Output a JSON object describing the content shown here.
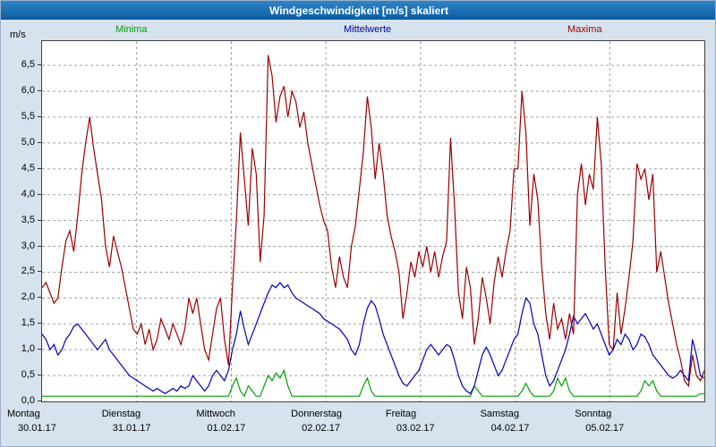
{
  "window": {
    "title": "Windgeschwindigkeit [m/s] skaliert"
  },
  "colors": {
    "background": "#d6e2ee",
    "titlebar_top": "#2f85c8",
    "titlebar_bottom": "#0d5ba0",
    "plot_border": "#404040",
    "grid": "#a0a0a0",
    "minima": "#00a000",
    "mittelwerte": "#0000bb",
    "maxima": "#990000"
  },
  "chart_data": {
    "type": "line",
    "title": "Windgeschwindigkeit [m/s] skaliert",
    "xlabel": "",
    "ylabel": "m/s",
    "ylim": [
      0,
      6.5
    ],
    "ymax_render": 6.97,
    "grid": "dashed",
    "legend_position": "top",
    "yticks": [
      0.0,
      0.5,
      1.0,
      1.5,
      2.0,
      2.5,
      3.0,
      3.5,
      4.0,
      4.5,
      5.0,
      5.5,
      6.0,
      6.5
    ],
    "points_per_day": 24,
    "x_days": [
      {
        "day": "Montag",
        "date": "30.01.17"
      },
      {
        "day": "Dienstag",
        "date": "31.01.17"
      },
      {
        "day": "Mittwoch",
        "date": "01.02.17"
      },
      {
        "day": "Donnerstag",
        "date": "02.02.17"
      },
      {
        "day": "Freitag",
        "date": "03.02.17"
      },
      {
        "day": "Samstag",
        "date": "04.02.17"
      },
      {
        "day": "Sonntag",
        "date": "05.02.17"
      }
    ],
    "series": [
      {
        "name": "Minima",
        "color": "#00a000",
        "values": [
          0.1,
          0.1,
          0.1,
          0.1,
          0.1,
          0.1,
          0.1,
          0.1,
          0.1,
          0.1,
          0.1,
          0.1,
          0.1,
          0.1,
          0.1,
          0.1,
          0.1,
          0.1,
          0.1,
          0.1,
          0.1,
          0.1,
          0.1,
          0.1,
          0.1,
          0.1,
          0.1,
          0.1,
          0.1,
          0.1,
          0.1,
          0.1,
          0.1,
          0.1,
          0.1,
          0.1,
          0.1,
          0.1,
          0.1,
          0.1,
          0.1,
          0.1,
          0.1,
          0.1,
          0.1,
          0.1,
          0.1,
          0.1,
          0.3,
          0.45,
          0.2,
          0.1,
          0.3,
          0.2,
          0.1,
          0.1,
          0.3,
          0.5,
          0.4,
          0.55,
          0.45,
          0.6,
          0.3,
          0.1,
          0.1,
          0.1,
          0.1,
          0.1,
          0.1,
          0.1,
          0.1,
          0.1,
          0.1,
          0.1,
          0.1,
          0.1,
          0.1,
          0.1,
          0.1,
          0.1,
          0.1,
          0.3,
          0.45,
          0.2,
          0.1,
          0.1,
          0.1,
          0.1,
          0.1,
          0.1,
          0.1,
          0.1,
          0.1,
          0.1,
          0.1,
          0.1,
          0.1,
          0.1,
          0.1,
          0.1,
          0.1,
          0.1,
          0.1,
          0.1,
          0.1,
          0.1,
          0.1,
          0.1,
          0.1,
          0.3,
          0.2,
          0.1,
          0.1,
          0.1,
          0.1,
          0.1,
          0.1,
          0.1,
          0.1,
          0.1,
          0.1,
          0.2,
          0.35,
          0.2,
          0.1,
          0.1,
          0.1,
          0.1,
          0.1,
          0.2,
          0.45,
          0.3,
          0.45,
          0.2,
          0.1,
          0.1,
          0.1,
          0.1,
          0.1,
          0.1,
          0.1,
          0.1,
          0.1,
          0.1,
          0.1,
          0.1,
          0.1,
          0.1,
          0.1,
          0.1,
          0.1,
          0.2,
          0.4,
          0.3,
          0.4,
          0.2,
          0.1,
          0.1,
          0.1,
          0.1,
          0.1,
          0.1,
          0.1,
          0.1,
          0.1,
          0.1,
          0.15,
          0.15
        ]
      },
      {
        "name": "Mittelwerte",
        "color": "#0000bb",
        "values": [
          1.3,
          1.2,
          1.0,
          1.1,
          0.9,
          1.0,
          1.2,
          1.3,
          1.45,
          1.5,
          1.4,
          1.3,
          1.2,
          1.1,
          1.0,
          1.1,
          1.2,
          1.0,
          0.9,
          0.8,
          0.7,
          0.6,
          0.5,
          0.45,
          0.4,
          0.35,
          0.3,
          0.25,
          0.2,
          0.25,
          0.2,
          0.15,
          0.2,
          0.25,
          0.2,
          0.3,
          0.25,
          0.3,
          0.5,
          0.4,
          0.3,
          0.2,
          0.3,
          0.5,
          0.6,
          0.5,
          0.4,
          0.6,
          1.0,
          1.3,
          1.75,
          1.4,
          1.1,
          1.3,
          1.5,
          1.7,
          1.9,
          2.1,
          2.25,
          2.2,
          2.3,
          2.2,
          2.25,
          2.1,
          2.0,
          1.95,
          1.9,
          1.85,
          1.8,
          1.75,
          1.7,
          1.6,
          1.55,
          1.5,
          1.45,
          1.4,
          1.3,
          1.2,
          1.0,
          0.9,
          1.1,
          1.5,
          1.8,
          1.95,
          1.85,
          1.6,
          1.3,
          1.1,
          0.9,
          0.7,
          0.5,
          0.35,
          0.3,
          0.4,
          0.5,
          0.6,
          0.8,
          1.0,
          1.1,
          1.0,
          0.9,
          1.0,
          1.1,
          1.05,
          0.8,
          0.5,
          0.3,
          0.2,
          0.15,
          0.3,
          0.6,
          0.9,
          1.05,
          0.9,
          0.7,
          0.5,
          0.6,
          0.8,
          1.0,
          1.2,
          1.3,
          1.7,
          2.0,
          1.9,
          1.5,
          1.3,
          0.9,
          0.5,
          0.3,
          0.4,
          0.6,
          0.8,
          1.0,
          1.3,
          1.65,
          1.5,
          1.6,
          1.7,
          1.55,
          1.4,
          1.5,
          1.3,
          1.1,
          0.9,
          1.0,
          1.2,
          1.1,
          1.3,
          1.2,
          1.0,
          1.1,
          1.3,
          1.25,
          1.1,
          0.9,
          0.8,
          0.7,
          0.6,
          0.5,
          0.45,
          0.5,
          0.6,
          0.5,
          0.4,
          1.2,
          0.9,
          0.5,
          0.45
        ]
      },
      {
        "name": "Maxima",
        "color": "#990000",
        "values": [
          2.2,
          2.3,
          2.1,
          1.9,
          2.0,
          2.6,
          3.1,
          3.3,
          2.9,
          3.6,
          4.4,
          5.0,
          5.5,
          4.9,
          4.4,
          3.9,
          3.0,
          2.6,
          3.2,
          2.9,
          2.6,
          2.2,
          1.8,
          1.4,
          1.3,
          1.5,
          1.1,
          1.4,
          1.0,
          1.2,
          1.6,
          1.4,
          1.2,
          1.5,
          1.3,
          1.1,
          1.4,
          2.0,
          1.7,
          2.0,
          1.5,
          1.0,
          0.8,
          1.3,
          1.8,
          2.0,
          1.2,
          0.7,
          2.2,
          3.5,
          5.2,
          4.3,
          3.4,
          4.9,
          4.4,
          2.7,
          3.6,
          6.7,
          6.3,
          5.4,
          5.9,
          6.1,
          5.5,
          6.0,
          5.8,
          5.3,
          5.6,
          5.0,
          4.6,
          4.2,
          3.8,
          3.5,
          3.3,
          2.6,
          2.2,
          2.8,
          2.4,
          2.2,
          3.0,
          3.4,
          4.1,
          4.8,
          5.9,
          5.3,
          4.3,
          5.0,
          4.4,
          3.6,
          3.2,
          2.9,
          2.5,
          1.6,
          2.1,
          2.7,
          2.4,
          2.9,
          2.6,
          3.0,
          2.5,
          2.9,
          2.4,
          2.8,
          3.1,
          5.1,
          3.8,
          2.1,
          1.6,
          2.6,
          2.2,
          1.1,
          1.6,
          2.4,
          2.0,
          1.5,
          2.3,
          2.8,
          2.4,
          2.9,
          3.3,
          4.5,
          4.5,
          6.0,
          5.2,
          3.4,
          4.4,
          3.9,
          2.6,
          1.7,
          1.2,
          1.9,
          1.4,
          1.6,
          1.2,
          1.7,
          1.3,
          4.0,
          4.6,
          3.8,
          4.4,
          4.1,
          5.5,
          4.6,
          2.6,
          1.1,
          1.0,
          2.1,
          1.3,
          1.8,
          2.4,
          3.1,
          4.6,
          4.3,
          4.5,
          3.9,
          4.4,
          2.5,
          2.9,
          2.4,
          1.9,
          1.5,
          1.1,
          0.8,
          0.4,
          0.3,
          0.9,
          0.5,
          0.4,
          0.6
        ]
      }
    ]
  }
}
